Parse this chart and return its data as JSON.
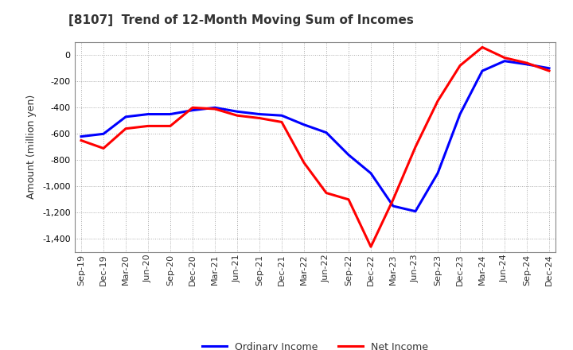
{
  "title": "[8107]  Trend of 12-Month Moving Sum of Incomes",
  "ylabel": "Amount (million yen)",
  "ylim": [
    -1500,
    100
  ],
  "yticks": [
    0,
    -200,
    -400,
    -600,
    -800,
    -1000,
    -1200,
    -1400
  ],
  "background_color": "#ffffff",
  "plot_bg_color": "#ffffff",
  "ordinary_income_color": "#0000ff",
  "net_income_color": "#ff0000",
  "line_width": 2.2,
  "x_labels": [
    "Sep-19",
    "Dec-19",
    "Mar-20",
    "Jun-20",
    "Sep-20",
    "Dec-20",
    "Mar-21",
    "Jun-21",
    "Sep-21",
    "Dec-21",
    "Mar-22",
    "Jun-22",
    "Sep-22",
    "Dec-22",
    "Mar-23",
    "Jun-23",
    "Sep-23",
    "Dec-23",
    "Mar-24",
    "Jun-24",
    "Sep-24",
    "Dec-24"
  ],
  "ordinary_income": [
    -620,
    -600,
    -470,
    -450,
    -450,
    -420,
    -400,
    -430,
    -450,
    -460,
    -530,
    -590,
    -760,
    -900,
    -1150,
    -1190,
    -900,
    -450,
    -120,
    -45,
    -70,
    -100
  ],
  "net_income": [
    -650,
    -710,
    -560,
    -540,
    -540,
    -400,
    -410,
    -460,
    -480,
    -510,
    -820,
    -1050,
    -1100,
    -1460,
    -1100,
    -700,
    -350,
    -80,
    60,
    -20,
    -60,
    -120
  ]
}
